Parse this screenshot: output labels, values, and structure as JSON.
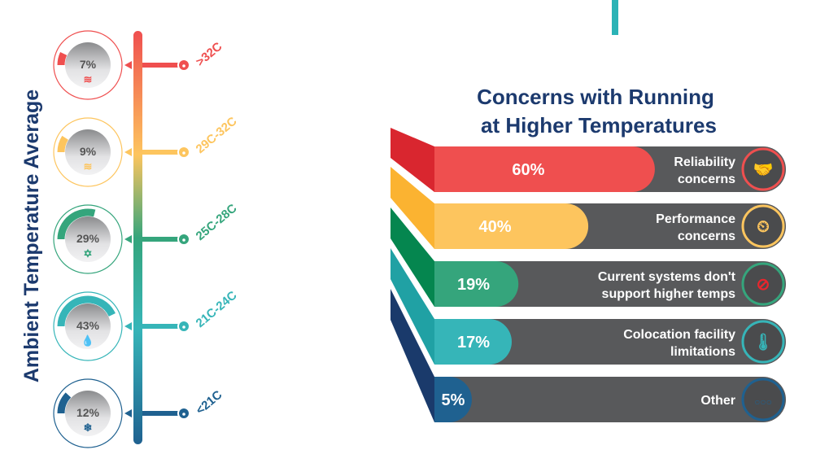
{
  "chart_data": [
    {
      "type": "gauge-list",
      "title": "Ambient Temperature Average",
      "categories": [
        ">32C",
        "29C-32C",
        "25C-28C",
        "21C-24C",
        "<21C"
      ],
      "values": [
        7,
        9,
        29,
        43,
        12
      ],
      "value_labels": [
        "7%",
        "9%",
        "29%",
        "43%",
        "12%"
      ],
      "icons": [
        "heat-waves-icon",
        "heat-waves-icon",
        "sun-icon",
        "water-drop-icon",
        "snowflake-icon"
      ],
      "colors": [
        "#ef4f4f",
        "#fdc55e",
        "#35a57c",
        "#36b5b8",
        "#1f6190"
      ]
    },
    {
      "type": "bar",
      "orientation": "horizontal",
      "title_lines": [
        "Concerns with Running",
        "at Higher Temperatures"
      ],
      "categories": [
        [
          "Reliability",
          "concerns"
        ],
        [
          "Performance",
          "concerns"
        ],
        [
          "Current systems don't",
          "support higher temps"
        ],
        [
          "Colocation facility",
          "limitations"
        ],
        [
          "Other"
        ]
      ],
      "values": [
        60,
        40,
        19,
        17,
        5
      ],
      "value_labels": [
        "60%",
        "40%",
        "19%",
        "17%",
        "5%"
      ],
      "icons": [
        "handshake-gear-icon",
        "speedometer-gear-icon",
        "no-server-icon",
        "factory-thermometer-icon",
        "ellipsis-icon"
      ],
      "colors": [
        "#ef4f4f",
        "#fdc55e",
        "#35a57c",
        "#36b5b8",
        "#1f6190"
      ],
      "fold_colors": [
        "#d9262f",
        "#fbb331",
        "#05864f",
        "#20a1a4",
        "#1a3a6b"
      ]
    }
  ],
  "colors": {
    "title": "#1c3a6e",
    "bar_track": "#58595b",
    "accent_line": "#2bb3b6"
  }
}
